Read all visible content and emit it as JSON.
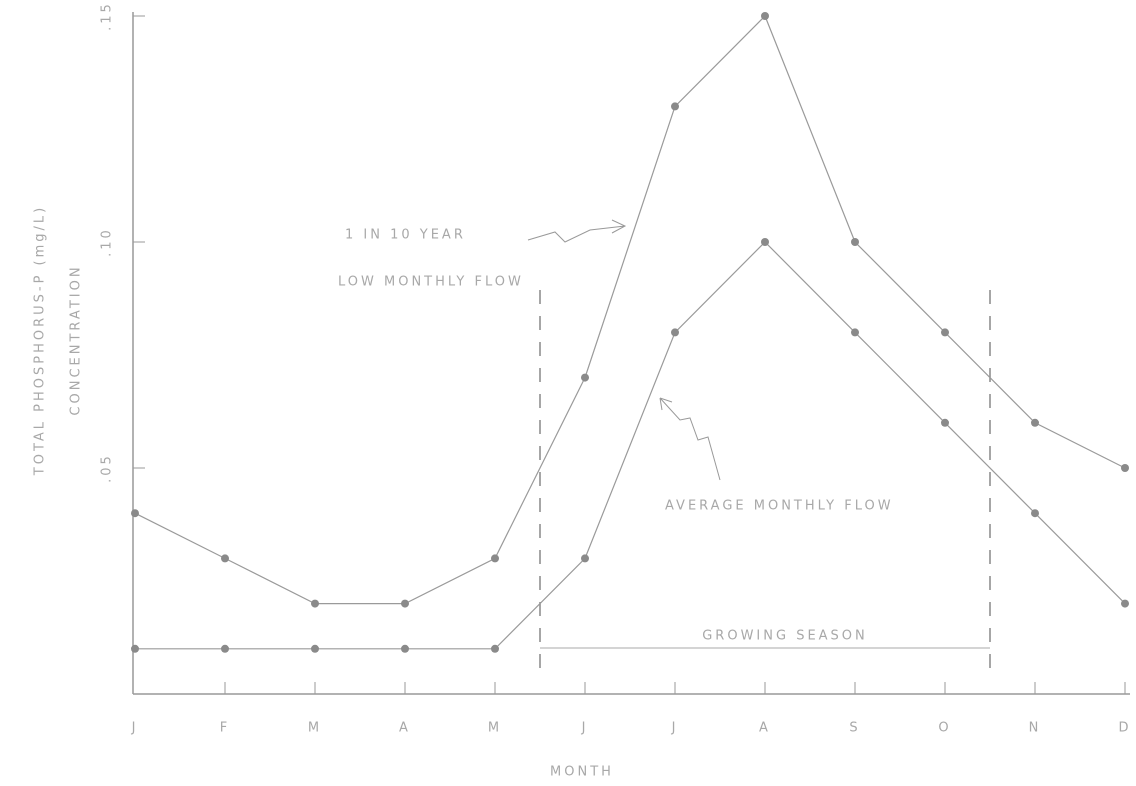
{
  "chart_data": {
    "type": "line",
    "y_label": [
      "TOTAL PHOSPHORUS-P (mg/L)",
      "CONCENTRATION"
    ],
    "x_label": "MONTH",
    "categories": [
      "J",
      "F",
      "M",
      "A",
      "M",
      "J",
      "J",
      "A",
      "S",
      "O",
      "N",
      "D"
    ],
    "series": [
      {
        "color": "#9a9a9a",
        "values": [
          0.04,
          0.03,
          0.02,
          0.02,
          0.03,
          0.07,
          0.13,
          0.15,
          0.1,
          0.08,
          0.06,
          0.05
        ]
      },
      {
        "color": "#9a9a9a",
        "values": [
          0.01,
          0.01,
          0.01,
          0.01,
          0.01,
          0.03,
          0.08,
          0.1,
          0.08,
          0.06,
          0.04,
          0.02
        ]
      }
    ],
    "annotations": [
      "1 IN 10 YEAR",
      "LOW MONTHLY FLOW",
      "AVERAGE MONTHLY FLOW"
    ],
    "growing_season": {
      "label": "GROWING SEASON",
      "from": 4.5,
      "to": 9.5
    },
    "ylim": [
      0,
      0.15
    ],
    "yticks": [
      {
        "value": 0.05,
        "label": ".05"
      },
      {
        "value": 0.1,
        "label": ".10"
      },
      {
        "value": 0.15,
        "label": ".15"
      }
    ]
  }
}
